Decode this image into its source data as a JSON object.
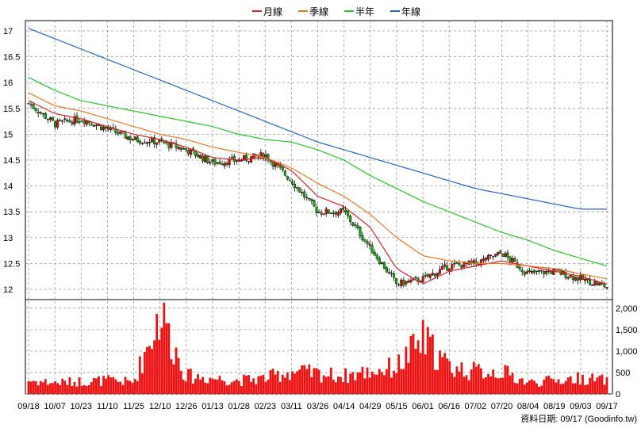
{
  "chart_data": {
    "type": "candlestick-with-volume",
    "legend": [
      {
        "label": "月線",
        "color": "#dd2222"
      },
      {
        "label": "季線",
        "color": "#ee7722"
      },
      {
        "label": "半年",
        "color": "#22cc22"
      },
      {
        "label": "年線",
        "color": "#2266cc"
      }
    ],
    "price_axis": {
      "ticks": [
        "17",
        "16.5",
        "16",
        "15.5",
        "15",
        "14.5",
        "14",
        "13.5",
        "13",
        "12.5",
        "12"
      ],
      "ylim": [
        11.8,
        17.2
      ]
    },
    "volume_axis": {
      "ticks": [
        "2,000",
        "1,500",
        "1,000",
        "500",
        "0"
      ],
      "ylim": [
        0,
        2200
      ]
    },
    "x_dates": [
      "09/18",
      "10/07",
      "10/23",
      "11/10",
      "11/25",
      "12/10",
      "12/26",
      "01/13",
      "01/28",
      "02/23",
      "03/11",
      "03/26",
      "04/14",
      "04/29",
      "05/15",
      "06/01",
      "06/16",
      "07/02",
      "07/20",
      "08/04",
      "08/19",
      "09/03",
      "09/17"
    ],
    "close_anchors": [
      15.6,
      15.2,
      15.3,
      15.1,
      14.9,
      14.85,
      14.7,
      14.45,
      14.5,
      14.6,
      14.1,
      13.5,
      13.5,
      12.8,
      12.1,
      12.2,
      12.45,
      12.5,
      12.7,
      12.3,
      12.35,
      12.2,
      12.05
    ],
    "ma_month": [
      15.65,
      15.4,
      15.3,
      15.15,
      15.0,
      14.9,
      14.75,
      14.55,
      14.5,
      14.55,
      14.3,
      13.8,
      13.6,
      13.2,
      12.4,
      12.1,
      12.35,
      12.45,
      12.55,
      12.45,
      12.35,
      12.25,
      12.1
    ],
    "ma_quarter": [
      15.8,
      15.55,
      15.45,
      15.3,
      15.15,
      15.0,
      14.9,
      14.75,
      14.65,
      14.55,
      14.35,
      14.05,
      13.8,
      13.45,
      13.0,
      12.65,
      12.55,
      12.5,
      12.5,
      12.45,
      12.4,
      12.3,
      12.2
    ],
    "ma_half": [
      16.1,
      15.85,
      15.65,
      15.55,
      15.45,
      15.35,
      15.25,
      15.15,
      15.0,
      14.9,
      14.85,
      14.7,
      14.5,
      14.2,
      13.95,
      13.7,
      13.5,
      13.3,
      13.1,
      12.95,
      12.75,
      12.6,
      12.45
    ],
    "ma_year": [
      17.05,
      16.85,
      16.65,
      16.45,
      16.25,
      16.05,
      15.85,
      15.65,
      15.45,
      15.25,
      15.05,
      14.85,
      14.7,
      14.55,
      14.4,
      14.25,
      14.1,
      13.95,
      13.85,
      13.75,
      13.65,
      13.55,
      13.55
    ],
    "volume_anchors": [
      300,
      250,
      280,
      300,
      260,
      1800,
      400,
      350,
      300,
      350,
      500,
      450,
      400,
      500,
      600,
      1200,
      600,
      500,
      500,
      250,
      300,
      350,
      300
    ],
    "footer": "資料日期: 09/17   (Goodinfo.tw)"
  }
}
